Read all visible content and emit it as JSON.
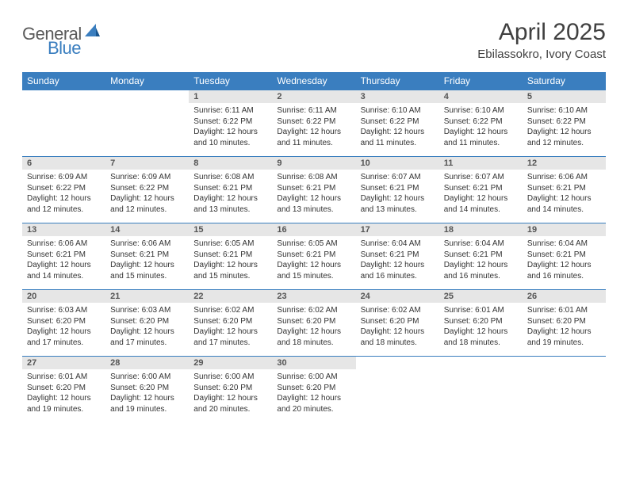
{
  "logo": {
    "general": "General",
    "blue": "Blue"
  },
  "title": "April 2025",
  "location": "Ebilassokro, Ivory Coast",
  "colors": {
    "header_bg": "#3a7ebf",
    "header_text": "#ffffff",
    "daynum_bg": "#e6e6e6",
    "daynum_text": "#555555",
    "body_text": "#333333",
    "page_bg": "#ffffff"
  },
  "day_headers": [
    "Sunday",
    "Monday",
    "Tuesday",
    "Wednesday",
    "Thursday",
    "Friday",
    "Saturday"
  ],
  "weeks": [
    [
      null,
      null,
      {
        "n": "1",
        "sunrise": "Sunrise: 6:11 AM",
        "sunset": "Sunset: 6:22 PM",
        "daylight": "Daylight: 12 hours and 10 minutes."
      },
      {
        "n": "2",
        "sunrise": "Sunrise: 6:11 AM",
        "sunset": "Sunset: 6:22 PM",
        "daylight": "Daylight: 12 hours and 11 minutes."
      },
      {
        "n": "3",
        "sunrise": "Sunrise: 6:10 AM",
        "sunset": "Sunset: 6:22 PM",
        "daylight": "Daylight: 12 hours and 11 minutes."
      },
      {
        "n": "4",
        "sunrise": "Sunrise: 6:10 AM",
        "sunset": "Sunset: 6:22 PM",
        "daylight": "Daylight: 12 hours and 11 minutes."
      },
      {
        "n": "5",
        "sunrise": "Sunrise: 6:10 AM",
        "sunset": "Sunset: 6:22 PM",
        "daylight": "Daylight: 12 hours and 12 minutes."
      }
    ],
    [
      {
        "n": "6",
        "sunrise": "Sunrise: 6:09 AM",
        "sunset": "Sunset: 6:22 PM",
        "daylight": "Daylight: 12 hours and 12 minutes."
      },
      {
        "n": "7",
        "sunrise": "Sunrise: 6:09 AM",
        "sunset": "Sunset: 6:22 PM",
        "daylight": "Daylight: 12 hours and 12 minutes."
      },
      {
        "n": "8",
        "sunrise": "Sunrise: 6:08 AM",
        "sunset": "Sunset: 6:21 PM",
        "daylight": "Daylight: 12 hours and 13 minutes."
      },
      {
        "n": "9",
        "sunrise": "Sunrise: 6:08 AM",
        "sunset": "Sunset: 6:21 PM",
        "daylight": "Daylight: 12 hours and 13 minutes."
      },
      {
        "n": "10",
        "sunrise": "Sunrise: 6:07 AM",
        "sunset": "Sunset: 6:21 PM",
        "daylight": "Daylight: 12 hours and 13 minutes."
      },
      {
        "n": "11",
        "sunrise": "Sunrise: 6:07 AM",
        "sunset": "Sunset: 6:21 PM",
        "daylight": "Daylight: 12 hours and 14 minutes."
      },
      {
        "n": "12",
        "sunrise": "Sunrise: 6:06 AM",
        "sunset": "Sunset: 6:21 PM",
        "daylight": "Daylight: 12 hours and 14 minutes."
      }
    ],
    [
      {
        "n": "13",
        "sunrise": "Sunrise: 6:06 AM",
        "sunset": "Sunset: 6:21 PM",
        "daylight": "Daylight: 12 hours and 14 minutes."
      },
      {
        "n": "14",
        "sunrise": "Sunrise: 6:06 AM",
        "sunset": "Sunset: 6:21 PM",
        "daylight": "Daylight: 12 hours and 15 minutes."
      },
      {
        "n": "15",
        "sunrise": "Sunrise: 6:05 AM",
        "sunset": "Sunset: 6:21 PM",
        "daylight": "Daylight: 12 hours and 15 minutes."
      },
      {
        "n": "16",
        "sunrise": "Sunrise: 6:05 AM",
        "sunset": "Sunset: 6:21 PM",
        "daylight": "Daylight: 12 hours and 15 minutes."
      },
      {
        "n": "17",
        "sunrise": "Sunrise: 6:04 AM",
        "sunset": "Sunset: 6:21 PM",
        "daylight": "Daylight: 12 hours and 16 minutes."
      },
      {
        "n": "18",
        "sunrise": "Sunrise: 6:04 AM",
        "sunset": "Sunset: 6:21 PM",
        "daylight": "Daylight: 12 hours and 16 minutes."
      },
      {
        "n": "19",
        "sunrise": "Sunrise: 6:04 AM",
        "sunset": "Sunset: 6:21 PM",
        "daylight": "Daylight: 12 hours and 16 minutes."
      }
    ],
    [
      {
        "n": "20",
        "sunrise": "Sunrise: 6:03 AM",
        "sunset": "Sunset: 6:20 PM",
        "daylight": "Daylight: 12 hours and 17 minutes."
      },
      {
        "n": "21",
        "sunrise": "Sunrise: 6:03 AM",
        "sunset": "Sunset: 6:20 PM",
        "daylight": "Daylight: 12 hours and 17 minutes."
      },
      {
        "n": "22",
        "sunrise": "Sunrise: 6:02 AM",
        "sunset": "Sunset: 6:20 PM",
        "daylight": "Daylight: 12 hours and 17 minutes."
      },
      {
        "n": "23",
        "sunrise": "Sunrise: 6:02 AM",
        "sunset": "Sunset: 6:20 PM",
        "daylight": "Daylight: 12 hours and 18 minutes."
      },
      {
        "n": "24",
        "sunrise": "Sunrise: 6:02 AM",
        "sunset": "Sunset: 6:20 PM",
        "daylight": "Daylight: 12 hours and 18 minutes."
      },
      {
        "n": "25",
        "sunrise": "Sunrise: 6:01 AM",
        "sunset": "Sunset: 6:20 PM",
        "daylight": "Daylight: 12 hours and 18 minutes."
      },
      {
        "n": "26",
        "sunrise": "Sunrise: 6:01 AM",
        "sunset": "Sunset: 6:20 PM",
        "daylight": "Daylight: 12 hours and 19 minutes."
      }
    ],
    [
      {
        "n": "27",
        "sunrise": "Sunrise: 6:01 AM",
        "sunset": "Sunset: 6:20 PM",
        "daylight": "Daylight: 12 hours and 19 minutes."
      },
      {
        "n": "28",
        "sunrise": "Sunrise: 6:00 AM",
        "sunset": "Sunset: 6:20 PM",
        "daylight": "Daylight: 12 hours and 19 minutes."
      },
      {
        "n": "29",
        "sunrise": "Sunrise: 6:00 AM",
        "sunset": "Sunset: 6:20 PM",
        "daylight": "Daylight: 12 hours and 20 minutes."
      },
      {
        "n": "30",
        "sunrise": "Sunrise: 6:00 AM",
        "sunset": "Sunset: 6:20 PM",
        "daylight": "Daylight: 12 hours and 20 minutes."
      },
      null,
      null,
      null
    ]
  ]
}
